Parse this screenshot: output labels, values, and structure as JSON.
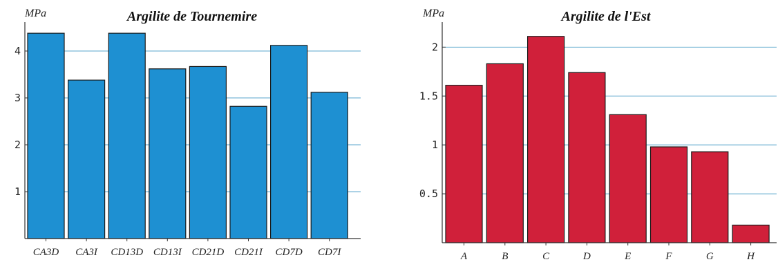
{
  "chart_data": [
    {
      "type": "bar",
      "title": "Argilite de Tournemire",
      "ylabel": "MPa",
      "xlabel": "",
      "categories": [
        "CA3D",
        "CA3I",
        "CD13D",
        "CD13I",
        "CD21D",
        "CD21I",
        "CD7D",
        "CD7I"
      ],
      "values": [
        4.38,
        3.38,
        4.38,
        3.62,
        3.67,
        2.82,
        4.12,
        3.12
      ],
      "ylim": [
        0,
        4.5
      ],
      "yticks": [
        "1",
        "2",
        "3",
        "4"
      ],
      "ytick_values": [
        1,
        2,
        3,
        4
      ],
      "grid": true,
      "bar_color": "#1e90d2"
    },
    {
      "type": "bar",
      "title": "Argilite de l'Est",
      "ylabel": "MPa",
      "xlabel": "",
      "categories": [
        "A",
        "B",
        "C",
        "D",
        "E",
        "F",
        "G",
        "H"
      ],
      "values": [
        1.61,
        1.83,
        2.11,
        1.74,
        1.31,
        0.98,
        0.93,
        0.18
      ],
      "ylim": [
        0,
        2.2
      ],
      "yticks": [
        "0.5",
        "1",
        "1.5",
        "2"
      ],
      "ytick_values": [
        0.5,
        1,
        1.5,
        2
      ],
      "grid": true,
      "bar_color": "#d0203a"
    }
  ]
}
